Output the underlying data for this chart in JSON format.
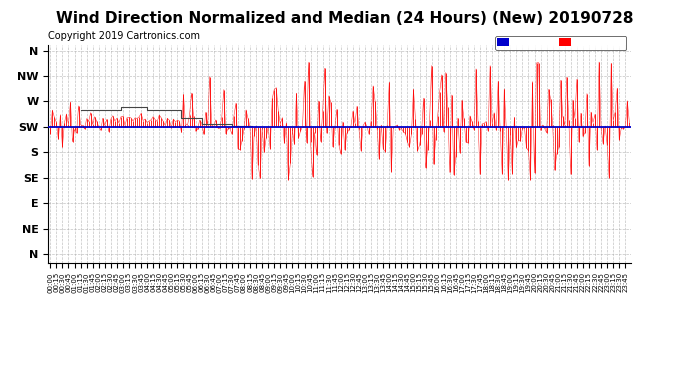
{
  "title": "Wind Direction Normalized and Median (24 Hours) (New) 20190728",
  "copyright": "Copyright 2019 Cartronics.com",
  "ytick_labels": [
    "N",
    "NW",
    "W",
    "SW",
    "S",
    "SE",
    "E",
    "NE",
    "N"
  ],
  "ytick_values": [
    0,
    45,
    90,
    135,
    180,
    225,
    270,
    315,
    360
  ],
  "ylim": [
    -10,
    375
  ],
  "avg_direction": 135,
  "legend_average_color": "#0000cc",
  "legend_direction_color": "#ff0000",
  "bar_color": "#ff0000",
  "gray_line_color": "#444444",
  "avg_line_color": "#0000cc",
  "background_color": "#ffffff",
  "grid_color": "#aaaaaa",
  "title_fontsize": 11,
  "copyright_fontsize": 7,
  "n_points": 288
}
